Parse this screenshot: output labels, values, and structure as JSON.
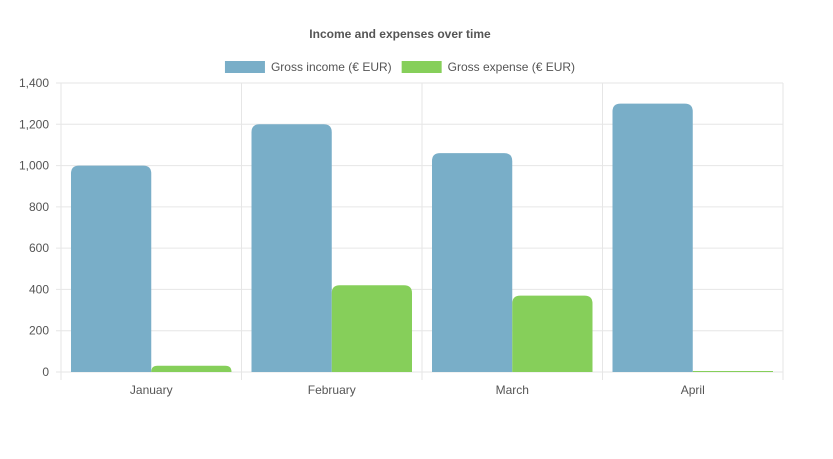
{
  "chart_data": {
    "type": "bar",
    "title": "Income and expenses over time",
    "categories": [
      "January",
      "February",
      "March",
      "April"
    ],
    "series": [
      {
        "name": "Gross income (€ EUR)",
        "color": "#79aec8",
        "values": [
          1000,
          1200,
          1060,
          1300
        ]
      },
      {
        "name": "Gross expense (€ EUR)",
        "color": "#86cf5a",
        "values": [
          30,
          420,
          370,
          0
        ]
      }
    ],
    "ylim": [
      0,
      1400
    ],
    "yticks": [
      0,
      200,
      400,
      600,
      800,
      "1,000",
      "1,200",
      "1,400"
    ],
    "grid": true,
    "legend": "top-center"
  }
}
